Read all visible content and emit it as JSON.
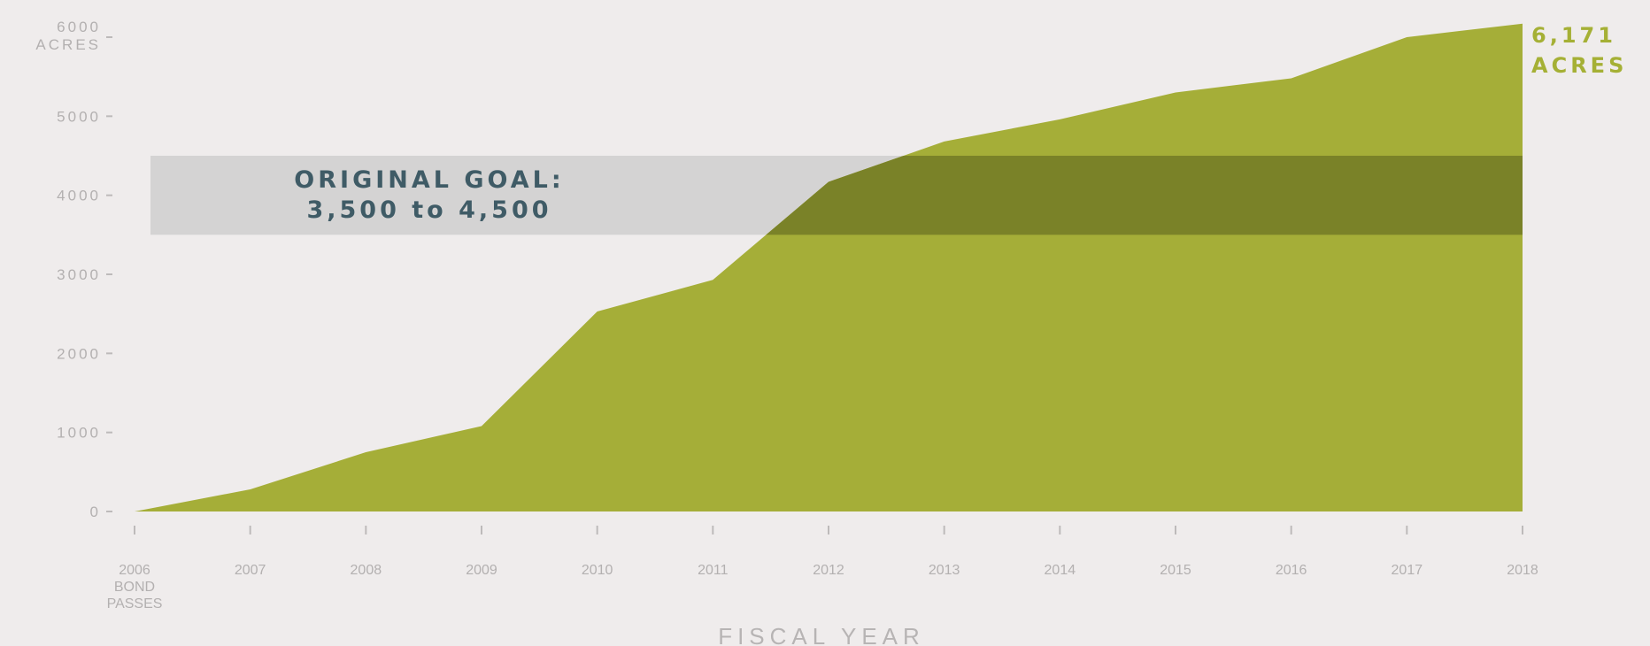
{
  "chart_data": {
    "type": "area",
    "x": [
      2006,
      2007,
      2008,
      2009,
      2010,
      2011,
      2012,
      2013,
      2014,
      2015,
      2016,
      2017,
      2018
    ],
    "x_tick_labels": [
      [
        "2006",
        "BOND",
        "PASSES"
      ],
      [
        "2007"
      ],
      [
        "2008"
      ],
      [
        "2009"
      ],
      [
        "2010"
      ],
      [
        "2011"
      ],
      [
        "2012"
      ],
      [
        "2013"
      ],
      [
        "2014"
      ],
      [
        "2015"
      ],
      [
        "2016"
      ],
      [
        "2017"
      ],
      [
        "2018"
      ]
    ],
    "series": [
      {
        "values": [
          0,
          280,
          750,
          1080,
          2530,
          2930,
          4170,
          4680,
          4960,
          5300,
          5480,
          6000,
          6171
        ],
        "color": "#a5ae38"
      }
    ],
    "y_ticks": [
      [
        "0"
      ],
      [
        "1000"
      ],
      [
        "2000"
      ],
      [
        "3000"
      ],
      [
        "4000"
      ],
      [
        "5000"
      ],
      [
        "6000",
        "ACRES"
      ]
    ],
    "ylim": [
      0,
      6000
    ],
    "xlim": [
      2006,
      2018
    ],
    "xlabel": "FISCAL YEAR",
    "goal_band": {
      "range": [
        3500,
        4500
      ],
      "label_line1": "ORIGINAL GOAL:",
      "label_line2": "3,500 to 4,500",
      "band_color": "#d4d3d3",
      "overlap_color": "#7a8228",
      "text_color": "#3f5b66"
    },
    "end_label": {
      "value": "6,171",
      "unit": "ACRES",
      "color": "#a5b035"
    },
    "grid": false,
    "legend": "none"
  }
}
